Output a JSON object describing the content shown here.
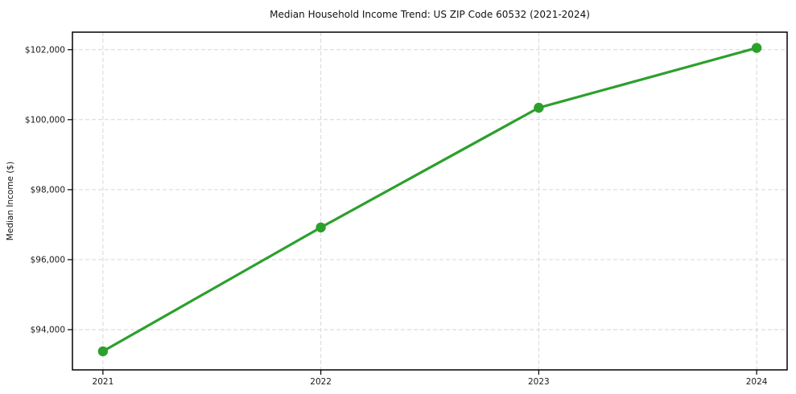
{
  "chart_data": {
    "type": "line",
    "title": "Median Household Income Trend: US ZIP Code 60532 (2021-2024)",
    "xlabel": "",
    "ylabel": "Median Income ($)",
    "x": [
      2021,
      2022,
      2023,
      2024
    ],
    "xtick_labels": [
      "2021",
      "2022",
      "2023",
      "2024"
    ],
    "values": [
      93380,
      96920,
      100340,
      102050
    ],
    "yticks": [
      94000,
      96000,
      98000,
      100000,
      102000
    ],
    "ytick_labels": [
      "$94,000",
      "$96,000",
      "$98,000",
      "$100,000",
      "$102,000"
    ],
    "xlim": [
      2020.86,
      2024.14
    ],
    "ylim": [
      92850,
      102500
    ],
    "grid": true,
    "legend": "none",
    "line_color": "#2ca02c",
    "marker_color": "#2ca02c",
    "grid_color": "#d6d6d6",
    "spine_color": "#000000",
    "tick_color": "#000000",
    "background_color": "#ffffff"
  }
}
